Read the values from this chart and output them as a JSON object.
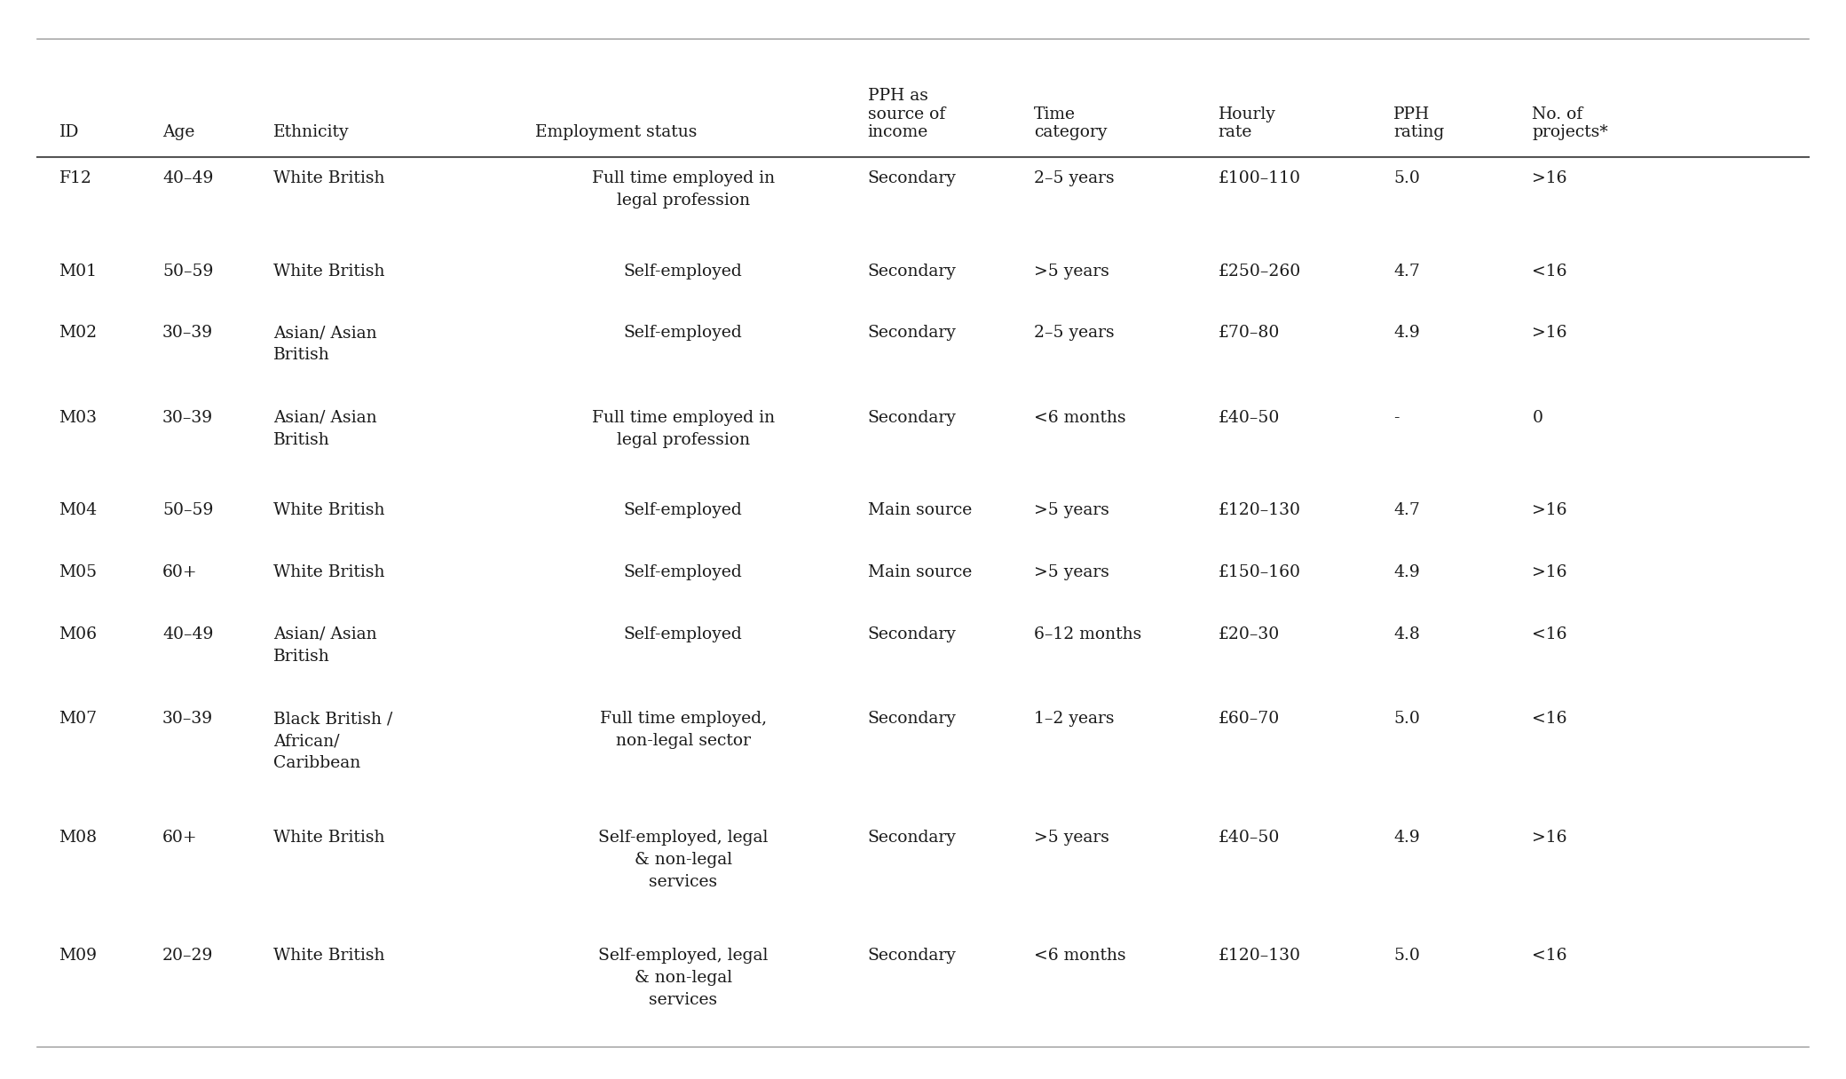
{
  "headers": [
    "ID",
    "Age",
    "Ethnicity",
    "Employment status",
    "PPH as\nsource of\nincome",
    "Time\ncategory",
    "Hourly\nrate",
    "PPH\nrating",
    "No. of\nprojects*"
  ],
  "rows": [
    {
      "id": "F12",
      "age": "40–49",
      "ethnicity": "White British",
      "employment": "Full time employed in\nlegal profession",
      "pph_income": "Secondary",
      "time_cat": "2–5 years",
      "hourly_rate": "£100–110",
      "pph_rating": "5.0",
      "projects": ">16"
    },
    {
      "id": "M01",
      "age": "50–59",
      "ethnicity": "White British",
      "employment": "Self-employed",
      "pph_income": "Secondary",
      "time_cat": ">5 years",
      "hourly_rate": "£250–260",
      "pph_rating": "4.7",
      "projects": "<16"
    },
    {
      "id": "M02",
      "age": "30–39",
      "ethnicity": "Asian/ Asian\nBritish",
      "employment": "Self-employed",
      "pph_income": "Secondary",
      "time_cat": "2–5 years",
      "hourly_rate": "£70–80",
      "pph_rating": "4.9",
      "projects": ">16"
    },
    {
      "id": "M03",
      "age": "30–39",
      "ethnicity": "Asian/ Asian\nBritish",
      "employment": "Full time employed in\nlegal profession",
      "pph_income": "Secondary",
      "time_cat": "<6 months",
      "hourly_rate": "£40–50",
      "pph_rating": "-",
      "projects": "0"
    },
    {
      "id": "M04",
      "age": "50–59",
      "ethnicity": "White British",
      "employment": "Self-employed",
      "pph_income": "Main source",
      "time_cat": ">5 years",
      "hourly_rate": "£120–130",
      "pph_rating": "4.7",
      "projects": ">16"
    },
    {
      "id": "M05",
      "age": "60+",
      "ethnicity": "White British",
      "employment": "Self-employed",
      "pph_income": "Main source",
      "time_cat": ">5 years",
      "hourly_rate": "£150–160",
      "pph_rating": "4.9",
      "projects": ">16"
    },
    {
      "id": "M06",
      "age": "40–49",
      "ethnicity": "Asian/ Asian\nBritish",
      "employment": "Self-employed",
      "pph_income": "Secondary",
      "time_cat": "6–12 months",
      "hourly_rate": "£20–30",
      "pph_rating": "4.8",
      "projects": "<16"
    },
    {
      "id": "M07",
      "age": "30–39",
      "ethnicity": "Black British /\nAfrican/\nCaribbean",
      "employment": "Full time employed,\nnon-legal sector",
      "pph_income": "Secondary",
      "time_cat": "1–2 years",
      "hourly_rate": "£60–70",
      "pph_rating": "5.0",
      "projects": "<16"
    },
    {
      "id": "M08",
      "age": "60+",
      "ethnicity": "White British",
      "employment": "Self-employed, legal\n& non-legal\nservices",
      "pph_income": "Secondary",
      "time_cat": ">5 years",
      "hourly_rate": "£40–50",
      "pph_rating": "4.9",
      "projects": ">16"
    },
    {
      "id": "M09",
      "age": "20–29",
      "ethnicity": "White British",
      "employment": "Self-employed, legal\n& non-legal\nservices",
      "pph_income": "Secondary",
      "time_cat": "<6 months",
      "hourly_rate": "£120–130",
      "pph_rating": "5.0",
      "projects": "<16"
    }
  ],
  "bg_color": "#ffffff",
  "text_color": "#1a1a1a",
  "header_line_color": "#555555",
  "top_line_color": "#aaaaaa",
  "bottom_line_color": "#aaaaaa",
  "font_size": 13.5,
  "header_font_size": 13.5
}
